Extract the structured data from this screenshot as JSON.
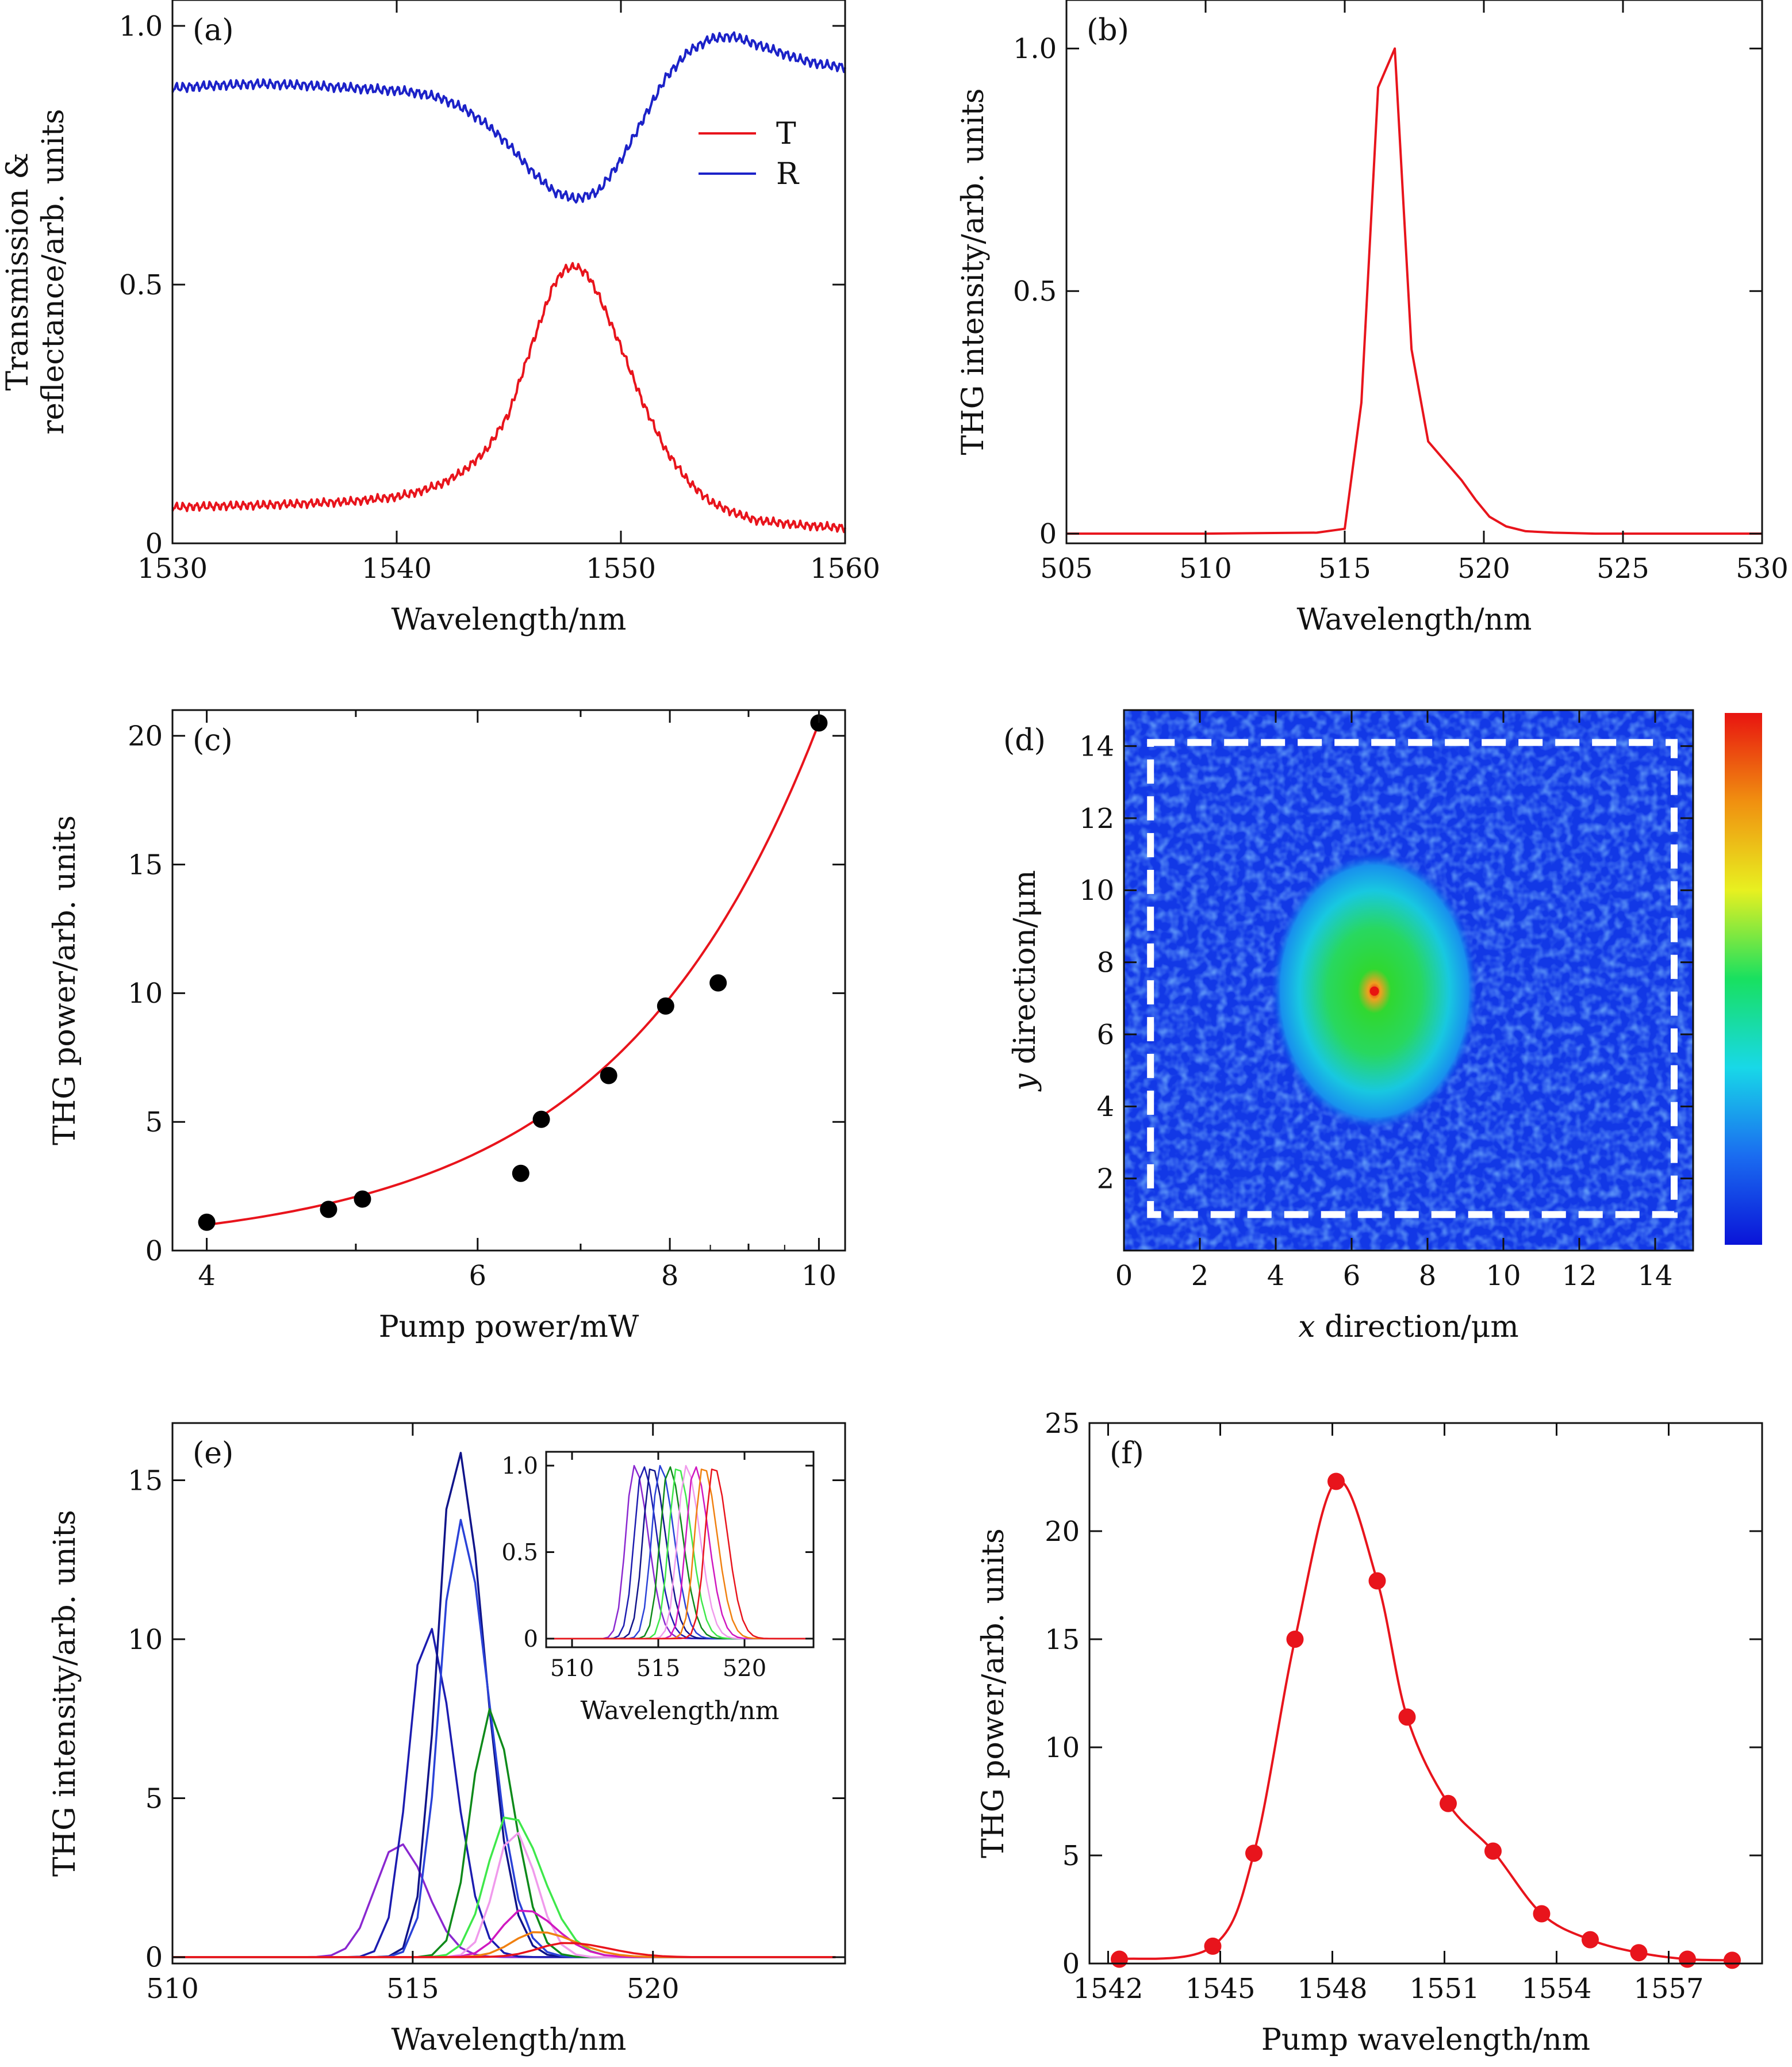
{
  "chart_data": [
    {
      "panel": "(a)",
      "type": "line",
      "xlabel": "Wavelength/nm",
      "ylabel": [
        "Transmission &",
        "reflectance/arb. units"
      ],
      "xlim": [
        1530,
        1560
      ],
      "ylim": [
        0,
        1.05
      ],
      "xticks": [
        1530,
        1540,
        1550,
        1560
      ],
      "yticks": [
        0,
        0.5,
        1.0
      ],
      "xticklabels": [
        "1530",
        "1540",
        "1550",
        "1560"
      ],
      "yticklabels": [
        "0",
        "0.5",
        "1.0"
      ],
      "legend": "upper-right",
      "colors": {
        "T": "#e8141c",
        "R": "#1c22c8"
      },
      "series": [
        {
          "name": "T",
          "x": [
            1530,
            1532,
            1534,
            1536,
            1538,
            1540,
            1541,
            1542,
            1543,
            1544,
            1545,
            1546,
            1547,
            1547.5,
            1548,
            1548.5,
            1549,
            1550,
            1551,
            1552,
            1553,
            1554,
            1555,
            1556,
            1558,
            1560
          ],
          "y": [
            0.07,
            0.072,
            0.074,
            0.077,
            0.081,
            0.09,
            0.1,
            0.115,
            0.14,
            0.18,
            0.25,
            0.38,
            0.5,
            0.53,
            0.535,
            0.52,
            0.48,
            0.38,
            0.27,
            0.18,
            0.12,
            0.08,
            0.06,
            0.045,
            0.035,
            0.03
          ]
        },
        {
          "name": "R",
          "x": [
            1530,
            1532,
            1534,
            1536,
            1538,
            1540,
            1541,
            1542,
            1543,
            1544,
            1545,
            1546,
            1547,
            1548,
            1549,
            1550,
            1551,
            1552,
            1553,
            1554,
            1555,
            1556,
            1557,
            1558,
            1559,
            1560
          ],
          "y": [
            0.88,
            0.885,
            0.888,
            0.885,
            0.88,
            0.875,
            0.87,
            0.86,
            0.84,
            0.81,
            0.77,
            0.72,
            0.68,
            0.665,
            0.68,
            0.74,
            0.82,
            0.9,
            0.95,
            0.975,
            0.98,
            0.965,
            0.95,
            0.935,
            0.925,
            0.92
          ]
        }
      ]
    },
    {
      "panel": "(b)",
      "type": "line",
      "xlabel": "Wavelength/nm",
      "ylabel": [
        "THG intensity/arb. units"
      ],
      "xlim": [
        505,
        530
      ],
      "ylim": [
        -0.02,
        1.1
      ],
      "xticks": [
        505,
        510,
        515,
        520,
        525,
        530
      ],
      "yticks": [
        0,
        0.5,
        1.0
      ],
      "xticklabels": [
        "505",
        "510",
        "515",
        "520",
        "525",
        "530"
      ],
      "yticklabels": [
        "0",
        "0.5",
        "1.0"
      ],
      "colors": {
        "THG": "#e8141c"
      },
      "series": [
        {
          "x": [
            505,
            510,
            514,
            515,
            515.6,
            516.2,
            516.8,
            517.4,
            518,
            518.6,
            519.2,
            519.7,
            520.2,
            520.8,
            521.5,
            522.5,
            524,
            527,
            530
          ],
          "y": [
            0,
            0,
            0.002,
            0.01,
            0.27,
            0.92,
            1.0,
            0.38,
            0.19,
            0.15,
            0.11,
            0.07,
            0.035,
            0.015,
            0.005,
            0.002,
            0,
            0,
            0
          ]
        }
      ]
    },
    {
      "panel": "(c)",
      "type": "scatter",
      "xlabel": "Pump power/mW",
      "ylabel": [
        "THG power/arb. units"
      ],
      "xscale": "log",
      "xlim": [
        3.8,
        10.4
      ],
      "ylim": [
        0,
        21
      ],
      "xticks": [
        4,
        6,
        8,
        10
      ],
      "yticks": [
        0,
        5,
        10,
        15,
        20
      ],
      "xticklabels": [
        "4",
        "6",
        "8",
        "10"
      ],
      "yticklabels": [
        "0",
        "5",
        "10",
        "15",
        "20"
      ],
      "xminorticks": [
        5,
        7,
        9
      ],
      "colors": {
        "points": "#000000",
        "fit": "#e8141c"
      },
      "points": {
        "x": [
          4.0,
          4.8,
          5.05,
          6.4,
          6.6,
          7.3,
          7.95,
          8.6,
          10.0
        ],
        "y": [
          1.1,
          1.6,
          2.0,
          3.0,
          5.1,
          6.8,
          9.5,
          10.4,
          20.5
        ]
      },
      "fit": {
        "type": "power",
        "y_at_4": 1.0,
        "y_at_10": 20.5
      }
    },
    {
      "panel": "(d)",
      "type": "heatmap",
      "xlabel_var": "x",
      "xlabel": " direction/μm",
      "ylabel_var": "y",
      "ylabel": " direction/μm",
      "xlim": [
        0,
        15
      ],
      "ylim": [
        0,
        15
      ],
      "xticks": [
        0,
        2,
        4,
        6,
        8,
        10,
        12,
        14
      ],
      "yticks": [
        2,
        4,
        6,
        8,
        10,
        12,
        14
      ],
      "xticklabels": [
        "0",
        "2",
        "4",
        "6",
        "8",
        "10",
        "12",
        "14"
      ],
      "yticklabels": [
        "2",
        "4",
        "6",
        "8",
        "10",
        "12",
        "14"
      ],
      "background_color": "#1238e6",
      "spot": {
        "center": [
          6.6,
          7.2
        ],
        "halfwidth": [
          2.2,
          3.1
        ]
      },
      "dashed_box": {
        "x": [
          0.7,
          14.5
        ],
        "y": [
          1.0,
          14.1
        ]
      },
      "colorbar_colors": [
        "#0a14d8",
        "#1a6cf0",
        "#18d8e8",
        "#18e060",
        "#e8f020",
        "#f09010",
        "#e81410"
      ]
    },
    {
      "panel": "(e)",
      "type": "line",
      "xlabel": "Wavelength/nm",
      "ylabel": [
        "THG intensity/arb. units"
      ],
      "xlim": [
        510,
        524
      ],
      "ylim": [
        -0.2,
        16.8
      ],
      "xticks": [
        510,
        515,
        520
      ],
      "yticks": [
        0,
        5,
        10,
        15
      ],
      "xticklabels": [
        "510",
        "515",
        "520"
      ],
      "yticklabels": [
        "0",
        "5",
        "10",
        "15"
      ],
      "series": [
        {
          "color": "#8a28d0",
          "peak_x": 514.7,
          "peak_y": 3.6,
          "w": 0.75,
          "tail": 1.2
        },
        {
          "color": "#1c1cb0",
          "peak_x": 515.3,
          "peak_y": 10.5,
          "w": 0.6,
          "tail": 1.4
        },
        {
          "color": "#10148a",
          "peak_x": 515.9,
          "peak_y": 16.1,
          "w": 0.6,
          "tail": 1.5
        },
        {
          "color": "#2a42d8",
          "peak_x": 515.95,
          "peak_y": 13.8,
          "w": 0.6,
          "tail": 1.6
        },
        {
          "color": "#0e8a1a",
          "peak_x": 516.6,
          "peak_y": 7.8,
          "w": 0.6,
          "tail": 1.3
        },
        {
          "color": "#3ee84a",
          "peak_x": 517.0,
          "peak_y": 4.5,
          "w": 0.7,
          "tail": 1.5
        },
        {
          "color": "#f09aec",
          "peak_x": 517.1,
          "peak_y": 4.0,
          "w": 0.6,
          "tail": 1.2
        },
        {
          "color": "#d018c0",
          "peak_x": 517.3,
          "peak_y": 1.5,
          "w": 0.7,
          "tail": 1.5
        },
        {
          "color": "#f08010",
          "peak_x": 517.6,
          "peak_y": 0.8,
          "w": 0.8,
          "tail": 1.5
        },
        {
          "color": "#e8141c",
          "peak_x": 518.2,
          "peak_y": 0.45,
          "w": 0.9,
          "tail": 1.5
        }
      ],
      "inset": {
        "xlabel": "Wavelength/nm",
        "xlim": [
          508.5,
          524
        ],
        "ylim": [
          -0.05,
          1.08
        ],
        "xticks": [
          510,
          515,
          520
        ],
        "yticks": [
          0,
          0.5,
          1.0
        ],
        "xticklabels": [
          "510",
          "515",
          "520"
        ],
        "yticklabels": [
          "0",
          "0.5",
          "1.0"
        ],
        "peaks": [
          513.6,
          514.1,
          514.6,
          515.1,
          515.6,
          516.1,
          516.6,
          517.1,
          517.6,
          518.2
        ]
      }
    },
    {
      "panel": "(f)",
      "type": "scatter",
      "xlabel": "Pump wavelength/nm",
      "ylabel": [
        "THG power/arb. units"
      ],
      "xlim": [
        1541.5,
        1559.5
      ],
      "ylim": [
        0,
        25
      ],
      "xticks": [
        1542,
        1545,
        1548,
        1551,
        1554,
        1557
      ],
      "yticks": [
        0,
        5,
        10,
        15,
        20,
        25
      ],
      "xticklabels": [
        "1542",
        "1545",
        "1548",
        "1551",
        "1554",
        "1557"
      ],
      "yticklabels": [
        "0",
        "5",
        "10",
        "15",
        "20",
        "25"
      ],
      "colors": {
        "points": "#e8141c"
      },
      "points": {
        "x": [
          1542.3,
          1544.8,
          1545.9,
          1547.0,
          1548.1,
          1549.2,
          1550.0,
          1551.1,
          1552.3,
          1553.6,
          1554.9,
          1556.2,
          1557.5,
          1558.7
        ],
        "y": [
          0.2,
          0.8,
          5.1,
          15.0,
          22.3,
          17.7,
          11.4,
          7.4,
          5.2,
          2.3,
          1.1,
          0.5,
          0.2,
          0.15
        ]
      }
    }
  ]
}
